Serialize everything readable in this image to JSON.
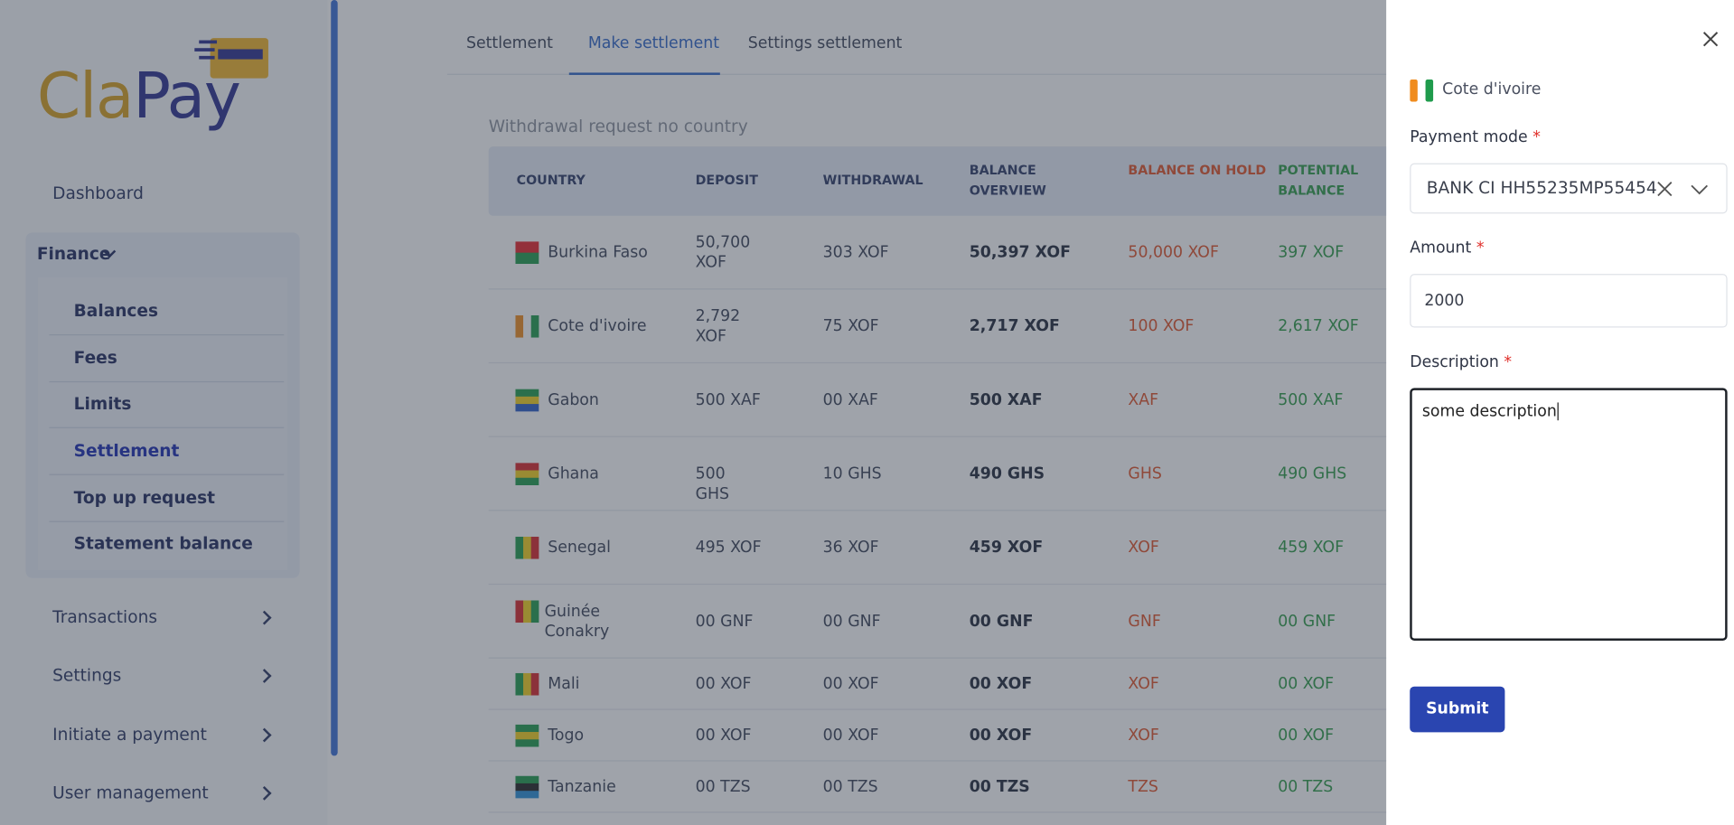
{
  "logo": [
    "Cla",
    "Pay"
  ],
  "sidebar": {
    "top": "Dashboard",
    "group": {
      "label": "Finance",
      "items": [
        "Balances",
        "Fees",
        "Limits",
        "Settlement",
        "Top up request",
        "Statement balance"
      ],
      "active": 3
    },
    "items": [
      "Transactions",
      "Settings",
      "Initiate a payment",
      "User management"
    ]
  },
  "tabs": {
    "items": [
      "Settlement",
      "Make settlement",
      "Settings settlement"
    ],
    "active": 1
  },
  "section_title": "Withdrawal request no country",
  "table": {
    "headers": [
      "COUNTRY",
      "DEPOSIT",
      "WITHDRAWAL",
      "BALANCE OVERVIEW",
      "BALANCE ON HOLD",
      "POTENTIAL BALANCE"
    ],
    "rows": [
      [
        "Burkina Faso",
        "50,700 XOF",
        "303 XOF",
        "50,397 XOF",
        "50,000 XOF",
        "397 XOF"
      ],
      [
        "Cote d'ivoire",
        "2,792 XOF",
        "75 XOF",
        "2,717 XOF",
        "100 XOF",
        "2,617 XOF"
      ],
      [
        "Gabon",
        "500 XAF",
        "00 XAF",
        "500 XAF",
        "XAF",
        "500 XAF"
      ],
      [
        "Ghana",
        "500 GHS",
        "10 GHS",
        "490 GHS",
        "GHS",
        "490 GHS"
      ],
      [
        "Senegal",
        "495 XOF",
        "36 XOF",
        "459 XOF",
        "XOF",
        "459 XOF"
      ],
      [
        "Guinée Conakry",
        "00 GNF",
        "00 GNF",
        "00 GNF",
        "GNF",
        "00 GNF"
      ],
      [
        "Mali",
        "00 XOF",
        "00 XOF",
        "00 XOF",
        "XOF",
        "00 XOF"
      ],
      [
        "Togo",
        "00 XOF",
        "00 XOF",
        "00 XOF",
        "XOF",
        "00 XOF"
      ],
      [
        "Tanzanie",
        "00 TZS",
        "00 TZS",
        "00 TZS",
        "TZS",
        "00 TZS"
      ]
    ]
  },
  "panel": {
    "country": "Cote d'ivoire",
    "required_mark": "*",
    "payment_mode": {
      "label": "Payment mode",
      "value": "BANK CI HH55235MP55454"
    },
    "amount": {
      "label": "Amount",
      "value": "2000"
    },
    "description": {
      "label": "Description",
      "value": "some description"
    },
    "submit": "Submit"
  }
}
